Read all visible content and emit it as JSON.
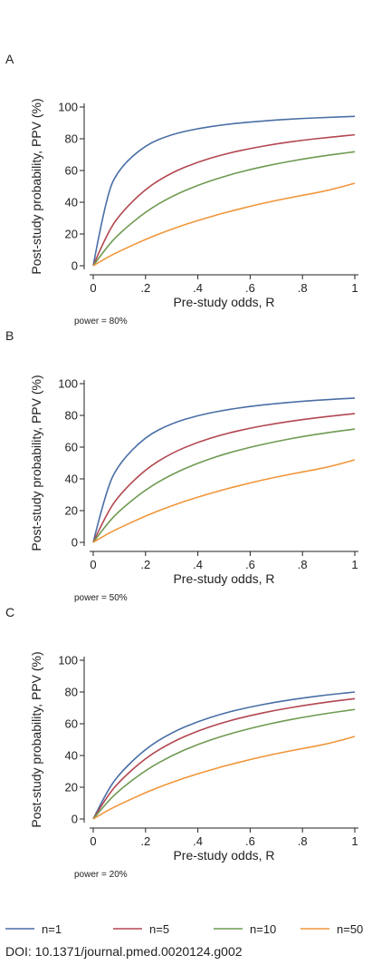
{
  "chart_data": [
    {
      "type": "line",
      "panel_label": "A",
      "note": "power = 80%",
      "xlabel": "Pre-study odds, R",
      "ylabel": "Post-study probability, PPV (%)",
      "xlim": [
        0,
        1
      ],
      "ylim": [
        0,
        100
      ],
      "x_ticks": [
        0,
        0.2,
        0.4,
        0.6,
        0.8,
        1
      ],
      "x_tick_labels": [
        "0",
        ".2",
        ".4",
        ".6",
        ".8",
        "1"
      ],
      "y_ticks": [
        0,
        20,
        40,
        60,
        80,
        100
      ],
      "y_tick_labels": [
        "0",
        "20",
        "40",
        "60",
        "80",
        "100"
      ],
      "x": [
        0,
        0.05,
        0.1,
        0.2,
        0.3,
        0.4,
        0.5,
        0.6,
        0.7,
        0.8,
        0.9,
        1.0
      ],
      "series": [
        {
          "name": "n=1",
          "color": "#4a6fa5",
          "values": [
            0,
            44.4,
            61.5,
            76.2,
            82.8,
            86.5,
            88.9,
            90.6,
            91.8,
            92.8,
            93.5,
            94.1
          ]
        },
        {
          "name": "n=5",
          "color": "#b24750",
          "values": [
            0,
            19.2,
            32.2,
            48.6,
            58.7,
            65.4,
            70.3,
            73.9,
            76.8,
            79.1,
            80.9,
            82.5
          ]
        },
        {
          "name": "n=10",
          "color": "#6f9a52",
          "values": [
            0,
            11.4,
            20.4,
            34.1,
            43.8,
            50.8,
            56.3,
            60.7,
            64.2,
            67.2,
            69.7,
            71.8
          ]
        },
        {
          "name": "n=50",
          "color": "#f0963a",
          "values": [
            0,
            5.0,
            9.1,
            16.7,
            23.1,
            28.6,
            33.3,
            37.5,
            41.2,
            44.4,
            47.4,
            52.0
          ]
        }
      ]
    },
    {
      "type": "line",
      "panel_label": "B",
      "note": "power = 50%",
      "xlabel": "Pre-study odds, R",
      "ylabel": "Post-study probability, PPV (%)",
      "xlim": [
        0,
        1
      ],
      "ylim": [
        0,
        100
      ],
      "x_ticks": [
        0,
        0.2,
        0.4,
        0.6,
        0.8,
        1
      ],
      "x_tick_labels": [
        "0",
        ".2",
        ".4",
        ".6",
        ".8",
        "1"
      ],
      "y_ticks": [
        0,
        20,
        40,
        60,
        80,
        100
      ],
      "y_tick_labels": [
        "0",
        "20",
        "40",
        "60",
        "80",
        "100"
      ],
      "x": [
        0,
        0.05,
        0.1,
        0.2,
        0.3,
        0.4,
        0.5,
        0.6,
        0.7,
        0.8,
        0.9,
        1.0
      ],
      "series": [
        {
          "name": "n=1",
          "color": "#4a6fa5",
          "values": [
            0,
            33.3,
            50.0,
            66.7,
            75.0,
            80.0,
            83.3,
            85.7,
            87.5,
            88.9,
            90.0,
            90.9
          ]
        },
        {
          "name": "n=5",
          "color": "#b24750",
          "values": [
            0,
            17.6,
            30.0,
            46.2,
            56.3,
            63.2,
            68.2,
            72.0,
            75.0,
            77.4,
            79.4,
            81.1
          ]
        },
        {
          "name": "n=10",
          "color": "#6f9a52",
          "values": [
            0,
            11.1,
            20.0,
            33.3,
            42.9,
            50.0,
            55.6,
            60.0,
            63.6,
            66.7,
            69.2,
            71.4
          ]
        },
        {
          "name": "n=50",
          "color": "#f0963a",
          "values": [
            0,
            5.0,
            9.1,
            16.7,
            23.1,
            28.6,
            33.3,
            37.5,
            41.2,
            44.4,
            47.4,
            52.0
          ]
        }
      ]
    },
    {
      "type": "line",
      "panel_label": "C",
      "note": "power = 20%",
      "xlabel": "Pre-study odds, R",
      "ylabel": "Post-study probability, PPV (%)",
      "xlim": [
        0,
        1
      ],
      "ylim": [
        0,
        100
      ],
      "x_ticks": [
        0,
        0.2,
        0.4,
        0.6,
        0.8,
        1
      ],
      "x_tick_labels": [
        "0",
        ".2",
        ".4",
        ".6",
        ".8",
        "1"
      ],
      "y_ticks": [
        0,
        20,
        40,
        60,
        80,
        100
      ],
      "y_tick_labels": [
        "0",
        "20",
        "40",
        "60",
        "80",
        "100"
      ],
      "x": [
        0,
        0.05,
        0.1,
        0.2,
        0.3,
        0.4,
        0.5,
        0.6,
        0.7,
        0.8,
        0.9,
        1.0
      ],
      "series": [
        {
          "name": "n=1",
          "color": "#4a6fa5",
          "values": [
            0,
            16.7,
            28.6,
            44.4,
            54.5,
            61.5,
            66.7,
            70.6,
            73.7,
            76.2,
            78.3,
            80.0
          ]
        },
        {
          "name": "n=5",
          "color": "#b24750",
          "values": [
            0,
            13.5,
            23.8,
            38.5,
            48.4,
            55.6,
            61.0,
            65.2,
            68.6,
            71.4,
            73.8,
            75.8
          ]
        },
        {
          "name": "n=10",
          "color": "#6f9a52",
          "values": [
            0,
            10.0,
            18.2,
            30.8,
            40.0,
            47.1,
            52.6,
            57.1,
            60.9,
            64.0,
            66.7,
            69.0
          ]
        },
        {
          "name": "n=50",
          "color": "#f0963a",
          "values": [
            0,
            5.0,
            9.1,
            16.7,
            23.1,
            28.6,
            33.3,
            37.5,
            41.2,
            44.4,
            47.4,
            52.0
          ]
        }
      ]
    }
  ],
  "legend": [
    {
      "label": "n=1",
      "color": "#4a6fa5"
    },
    {
      "label": "n=5",
      "color": "#b24750"
    },
    {
      "label": "n=10",
      "color": "#6f9a52"
    },
    {
      "label": "n=50",
      "color": "#f0963a"
    }
  ],
  "doi": "DOI: 10.1371/journal.pmed.0020124.g002"
}
